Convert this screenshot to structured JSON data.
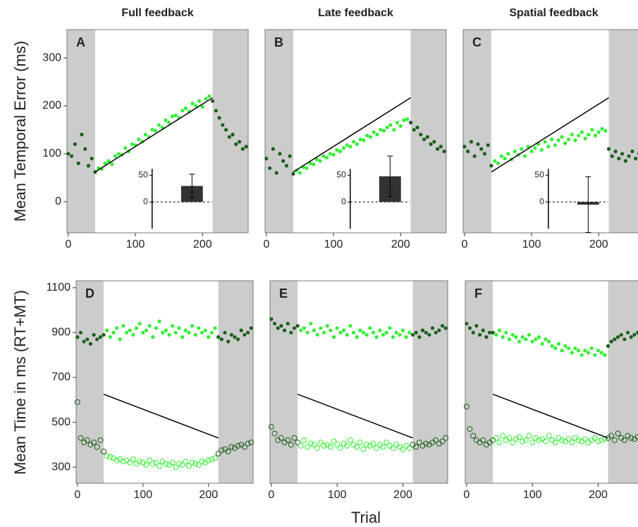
{
  "ylabel_top": "Mean Temporal Error (ms)",
  "ylabel_bottom": "Mean Time in ms (RT+MT)",
  "xlabel": "Trial",
  "chart_data": [
    {
      "type": "scatter",
      "title": "Full feedback",
      "label": "A",
      "xlim": [
        -2,
        268
      ],
      "ylim": [
        -65,
        359
      ],
      "xticks": [
        0,
        100,
        200
      ],
      "yticks": [
        0,
        100,
        200,
        300
      ],
      "shaded": [
        [
          -2,
          40
        ],
        [
          215,
          268
        ]
      ],
      "color": "#33ee33",
      "baseline_color": "#1a5e1a",
      "x": [
        0,
        5,
        10,
        15,
        20,
        25,
        30,
        35,
        40,
        45,
        50,
        55,
        60,
        65,
        70,
        75,
        80,
        85,
        90,
        95,
        100,
        105,
        110,
        115,
        120,
        125,
        130,
        135,
        140,
        145,
        150,
        155,
        160,
        165,
        170,
        175,
        180,
        185,
        190,
        195,
        200,
        205,
        210,
        215,
        220,
        225,
        230,
        235,
        240,
        245,
        250,
        255,
        260,
        265
      ],
      "series": [
        {
          "marker": "filled",
          "values": [
            100,
            95,
            120,
            80,
            140,
            110,
            75,
            90,
            62,
            70,
            68,
            80,
            85,
            78,
            95,
            100,
            98,
            112,
            105,
            120,
            118,
            130,
            125,
            140,
            135,
            150,
            148,
            160,
            155,
            170,
            165,
            178,
            180,
            175,
            190,
            195,
            188,
            205,
            200,
            210,
            198,
            215,
            220,
            210,
            190,
            175,
            160,
            150,
            135,
            140,
            120,
            125,
            110,
            115
          ]
        }
      ],
      "trend": {
        "x": [
          40,
          215
        ],
        "y": [
          62,
          217
        ]
      },
      "inset": {
        "value": 30,
        "error": 22,
        "ylim": [
          -50,
          62
        ],
        "yticks": [
          0,
          50
        ]
      }
    },
    {
      "type": "scatter",
      "title": "Late feedback",
      "label": "B",
      "xlim": [
        -2,
        268
      ],
      "ylim": [
        -65,
        359
      ],
      "xticks": [
        0,
        100,
        200
      ],
      "shaded": [
        [
          -2,
          40
        ],
        [
          215,
          268
        ]
      ],
      "color": "#33ee33",
      "baseline_color": "#1a5e1a",
      "x": [
        0,
        5,
        10,
        15,
        20,
        25,
        30,
        35,
        40,
        45,
        50,
        55,
        60,
        65,
        70,
        75,
        80,
        85,
        90,
        95,
        100,
        105,
        110,
        115,
        120,
        125,
        130,
        135,
        140,
        145,
        150,
        155,
        160,
        165,
        170,
        175,
        180,
        185,
        190,
        195,
        200,
        205,
        210,
        215,
        220,
        225,
        230,
        235,
        240,
        245,
        250,
        255,
        260,
        265
      ],
      "series": [
        {
          "marker": "filled",
          "values": [
            90,
            70,
            110,
            60,
            100,
            85,
            75,
            95,
            58,
            65,
            60,
            72,
            70,
            80,
            78,
            88,
            85,
            95,
            92,
            100,
            98,
            108,
            105,
            112,
            118,
            115,
            125,
            120,
            130,
            128,
            138,
            135,
            145,
            140,
            150,
            148,
            155,
            160,
            150,
            165,
            158,
            170,
            172,
            165,
            150,
            155,
            140,
            130,
            135,
            120,
            125,
            110,
            115,
            105
          ]
        }
      ],
      "trend": {
        "x": [
          40,
          215
        ],
        "y": [
          62,
          217
        ]
      },
      "inset": {
        "value": 48,
        "error": 38,
        "ylim": [
          -50,
          62
        ],
        "yticks": [
          0,
          50
        ]
      }
    },
    {
      "type": "scatter",
      "title": "Spatial feedback",
      "label": "C",
      "xlim": [
        -2,
        268
      ],
      "ylim": [
        -65,
        359
      ],
      "xticks": [
        0,
        100,
        200
      ],
      "shaded": [
        [
          -2,
          40
        ],
        [
          215,
          268
        ]
      ],
      "color": "#33ee33",
      "baseline_color": "#1a5e1a",
      "x": [
        0,
        5,
        10,
        15,
        20,
        25,
        30,
        35,
        40,
        45,
        50,
        55,
        60,
        65,
        70,
        75,
        80,
        85,
        90,
        95,
        100,
        105,
        110,
        115,
        120,
        125,
        130,
        135,
        140,
        145,
        150,
        155,
        160,
        165,
        170,
        175,
        180,
        185,
        190,
        195,
        200,
        205,
        210,
        215,
        220,
        225,
        230,
        235,
        240,
        245,
        250,
        255,
        260,
        265
      ],
      "series": [
        {
          "marker": "filled",
          "values": [
            115,
            105,
            125,
            95,
            120,
            110,
            100,
            118,
            75,
            85,
            80,
            95,
            90,
            100,
            88,
            105,
            98,
            110,
            95,
            115,
            105,
            112,
            120,
            108,
            125,
            115,
            130,
            118,
            128,
            135,
            122,
            130,
            140,
            128,
            138,
            145,
            132,
            140,
            150,
            138,
            145,
            152,
            148,
            110,
            95,
            105,
            90,
            100,
            85,
            95,
            105,
            90,
            100,
            95
          ]
        }
      ],
      "trend": {
        "x": [
          40,
          215
        ],
        "y": [
          62,
          217
        ]
      },
      "inset": {
        "value": -5,
        "error": 52,
        "ylim": [
          -50,
          62
        ],
        "yticks": [
          0,
          50
        ]
      }
    },
    {
      "type": "scatter",
      "label": "D",
      "xlim": [
        -2,
        268
      ],
      "ylim": [
        228,
        1131
      ],
      "xticks": [
        0,
        100,
        200
      ],
      "yticks": [
        300,
        500,
        700,
        900,
        1100
      ],
      "shaded": [
        [
          -2,
          40
        ],
        [
          215,
          268
        ]
      ],
      "color": "#33ee33",
      "baseline_color": "#1a5e1a",
      "x": [
        0,
        5,
        10,
        15,
        20,
        25,
        30,
        35,
        40,
        45,
        50,
        55,
        60,
        65,
        70,
        75,
        80,
        85,
        90,
        95,
        100,
        105,
        110,
        115,
        120,
        125,
        130,
        135,
        140,
        145,
        150,
        155,
        160,
        165,
        170,
        175,
        180,
        185,
        190,
        195,
        200,
        205,
        210,
        215,
        220,
        225,
        230,
        235,
        240,
        245,
        250,
        255,
        260,
        265
      ],
      "series": [
        {
          "marker": "filled",
          "values": [
            880,
            900,
            860,
            870,
            850,
            890,
            870,
            880,
            890,
            910,
            880,
            900,
            920,
            870,
            930,
            900,
            910,
            890,
            920,
            940,
            900,
            910,
            930,
            880,
            920,
            950,
            900,
            910,
            890,
            930,
            900,
            920,
            880,
            910,
            900,
            930,
            890,
            920,
            900,
            910,
            880,
            900,
            920,
            880,
            870,
            900,
            860,
            890,
            880,
            870,
            910,
            890,
            900,
            920
          ]
        },
        {
          "marker": "open",
          "values": [
            590,
            430,
            410,
            420,
            400,
            410,
            390,
            420,
            370,
            350,
            345,
            340,
            330,
            335,
            325,
            330,
            320,
            335,
            315,
            325,
            320,
            310,
            330,
            315,
            320,
            305,
            325,
            315,
            310,
            320,
            300,
            315,
            310,
            325,
            305,
            320,
            315,
            310,
            325,
            320,
            330,
            335,
            340,
            360,
            375,
            380,
            370,
            390,
            385,
            395,
            400,
            390,
            405,
            410
          ]
        }
      ],
      "trend": {
        "x": [
          40,
          215
        ],
        "y": [
          625,
          430
        ]
      }
    },
    {
      "type": "scatter",
      "label": "E",
      "xlim": [
        -2,
        268
      ],
      "ylim": [
        228,
        1131
      ],
      "xticks": [
        0,
        100,
        200
      ],
      "shaded": [
        [
          -2,
          40
        ],
        [
          215,
          268
        ]
      ],
      "color": "#33ee33",
      "baseline_color": "#1a5e1a",
      "x": [
        0,
        5,
        10,
        15,
        20,
        25,
        30,
        35,
        40,
        45,
        50,
        55,
        60,
        65,
        70,
        75,
        80,
        85,
        90,
        95,
        100,
        105,
        110,
        115,
        120,
        125,
        130,
        135,
        140,
        145,
        150,
        155,
        160,
        165,
        170,
        175,
        180,
        185,
        190,
        195,
        200,
        205,
        210,
        215,
        220,
        225,
        230,
        235,
        240,
        245,
        250,
        255,
        260,
        265
      ],
      "series": [
        {
          "marker": "filled",
          "values": [
            960,
            940,
            920,
            930,
            910,
            940,
            900,
            920,
            930,
            910,
            920,
            900,
            940,
            910,
            890,
            920,
            900,
            930,
            910,
            880,
            920,
            900,
            910,
            890,
            930,
            900,
            880,
            910,
            900,
            890,
            920,
            900,
            880,
            910,
            890,
            900,
            920,
            880,
            900,
            890,
            910,
            880,
            900,
            890,
            900,
            880,
            910,
            900,
            890,
            920,
            900,
            910,
            930,
            920
          ]
        },
        {
          "marker": "open",
          "values": [
            480,
            450,
            420,
            430,
            410,
            420,
            400,
            430,
            410,
            395,
            420,
            390,
            405,
            400,
            385,
            410,
            395,
            400,
            390,
            415,
            400,
            385,
            405,
            395,
            420,
            400,
            390,
            410,
            380,
            400,
            395,
            405,
            385,
            400,
            390,
            410,
            395,
            385,
            400,
            390,
            380,
            395,
            385,
            400,
            390,
            410,
            395,
            405,
            400,
            410,
            420,
            405,
            415,
            430
          ]
        }
      ],
      "trend": {
        "x": [
          40,
          215
        ],
        "y": [
          625,
          430
        ]
      }
    },
    {
      "type": "scatter",
      "label": "F",
      "xlim": [
        -2,
        268
      ],
      "ylim": [
        228,
        1131
      ],
      "xticks": [
        0,
        100,
        200
      ],
      "shaded": [
        [
          -2,
          40
        ],
        [
          215,
          268
        ]
      ],
      "color": "#33ee33",
      "baseline_color": "#1a5e1a",
      "x": [
        0,
        5,
        10,
        15,
        20,
        25,
        30,
        35,
        40,
        45,
        50,
        55,
        60,
        65,
        70,
        75,
        80,
        85,
        90,
        95,
        100,
        105,
        110,
        115,
        120,
        125,
        130,
        135,
        140,
        145,
        150,
        155,
        160,
        165,
        170,
        175,
        180,
        185,
        190,
        195,
        200,
        205,
        210,
        215,
        220,
        225,
        230,
        235,
        240,
        245,
        250,
        255,
        260,
        265
      ],
      "series": [
        {
          "marker": "filled",
          "values": [
            940,
            920,
            900,
            930,
            890,
            910,
            880,
            900,
            900,
            890,
            910,
            880,
            900,
            870,
            890,
            880,
            860,
            880,
            870,
            890,
            860,
            870,
            880,
            850,
            870,
            860,
            840,
            830,
            850,
            820,
            840,
            830,
            810,
            830,
            820,
            800,
            820,
            810,
            830,
            800,
            820,
            810,
            800,
            840,
            860,
            870,
            880,
            890,
            870,
            900,
            880,
            890,
            900,
            910
          ]
        },
        {
          "marker": "open",
          "values": [
            570,
            470,
            440,
            420,
            410,
            420,
            400,
            410,
            420,
            430,
            410,
            440,
            420,
            430,
            410,
            425,
            435,
            415,
            420,
            440,
            410,
            430,
            420,
            425,
            415,
            440,
            420,
            410,
            430,
            420,
            415,
            425,
            410,
            430,
            420,
            415,
            425,
            410,
            420,
            430,
            415,
            420,
            425,
            430,
            440,
            420,
            450,
            430,
            420,
            440,
            430,
            425,
            435,
            430
          ]
        }
      ],
      "trend": {
        "x": [
          40,
          215
        ],
        "y": [
          625,
          430
        ]
      }
    }
  ]
}
